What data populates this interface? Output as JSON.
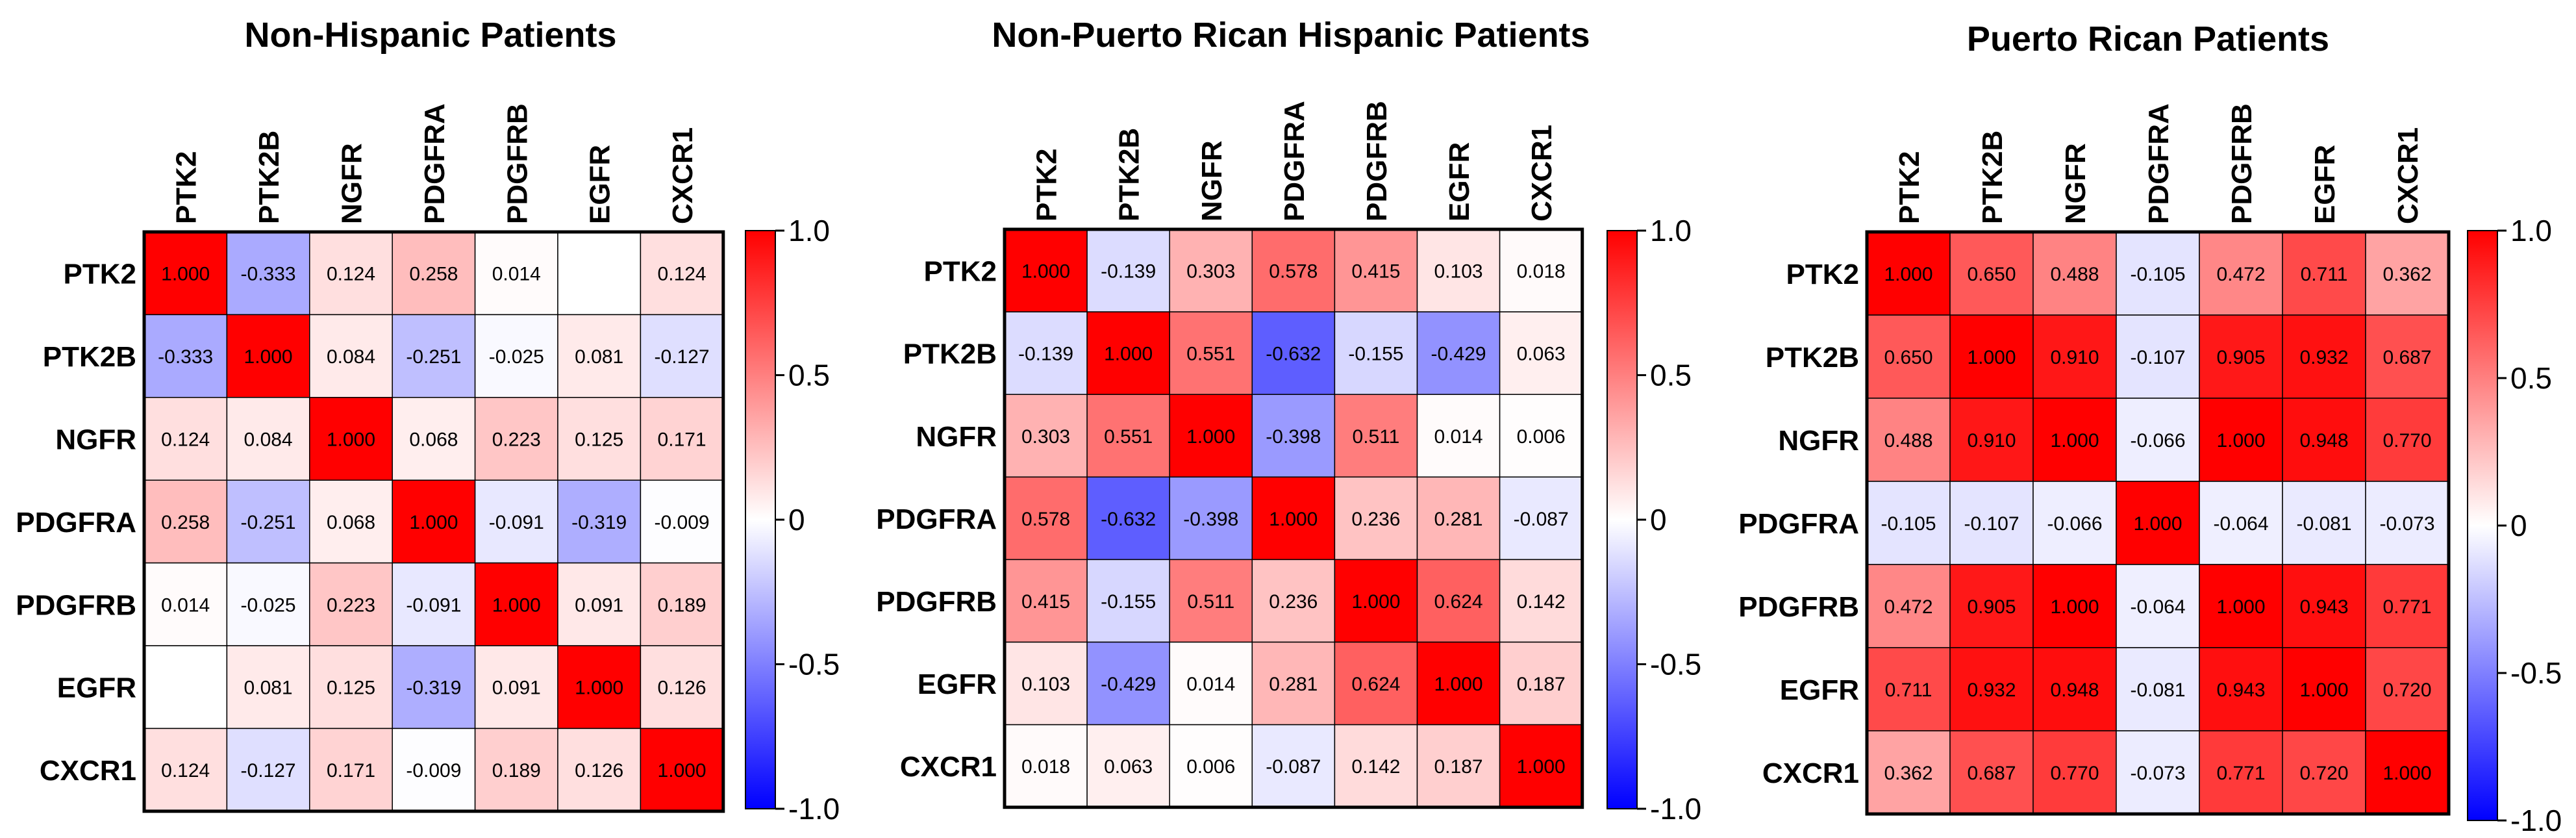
{
  "chart_data": [
    {
      "type": "heatmap",
      "title": "Non-Hispanic Patients",
      "genes": [
        "PTK2",
        "PTK2B",
        "NGFR",
        "PDGFRA",
        "PDGFRB",
        "EGFR",
        "CXCR1"
      ],
      "matrix": [
        [
          1.0,
          -0.333,
          0.124,
          0.258,
          0.014,
          null,
          0.124
        ],
        [
          -0.333,
          1.0,
          0.084,
          -0.251,
          -0.025,
          0.081,
          -0.127
        ],
        [
          0.124,
          0.084,
          1.0,
          0.068,
          0.223,
          0.125,
          0.171
        ],
        [
          0.258,
          -0.251,
          0.068,
          1.0,
          -0.091,
          -0.319,
          -0.009
        ],
        [
          0.014,
          -0.025,
          0.223,
          -0.091,
          1.0,
          0.091,
          0.189
        ],
        [
          null,
          0.081,
          0.125,
          -0.319,
          0.091,
          1.0,
          0.126
        ],
        [
          0.124,
          -0.127,
          0.171,
          -0.009,
          0.189,
          0.126,
          1.0
        ]
      ],
      "colorbar": {
        "ticks": [
          "1.0",
          "0.5",
          "0",
          "-0.5",
          "-1.0"
        ],
        "range": [
          -1,
          1
        ]
      }
    },
    {
      "type": "heatmap",
      "title": "Non-Puerto Rican Hispanic Patients",
      "genes": [
        "PTK2",
        "PTK2B",
        "NGFR",
        "PDGFRA",
        "PDGFRB",
        "EGFR",
        "CXCR1"
      ],
      "matrix": [
        [
          1.0,
          -0.139,
          0.303,
          0.578,
          0.415,
          0.103,
          0.018
        ],
        [
          -0.139,
          1.0,
          0.551,
          -0.632,
          -0.155,
          -0.429,
          0.063
        ],
        [
          0.303,
          0.551,
          1.0,
          -0.398,
          0.511,
          0.014,
          0.006
        ],
        [
          0.578,
          -0.632,
          -0.398,
          1.0,
          0.236,
          0.281,
          -0.087
        ],
        [
          0.415,
          -0.155,
          0.511,
          0.236,
          1.0,
          0.624,
          0.142
        ],
        [
          0.103,
          -0.429,
          0.014,
          0.281,
          0.624,
          1.0,
          0.187
        ],
        [
          0.018,
          0.063,
          0.006,
          -0.087,
          0.142,
          0.187,
          1.0
        ]
      ],
      "colorbar": {
        "ticks": [
          "1.0",
          "0.5",
          "0",
          "-0.5",
          "-1.0"
        ],
        "range": [
          -1,
          1
        ]
      }
    },
    {
      "type": "heatmap",
      "title": "Puerto Rican Patients",
      "genes": [
        "PTK2",
        "PTK2B",
        "NGFR",
        "PDGFRA",
        "PDGFRB",
        "EGFR",
        "CXCR1"
      ],
      "matrix": [
        [
          1.0,
          0.65,
          0.488,
          -0.105,
          0.472,
          0.711,
          0.362
        ],
        [
          0.65,
          1.0,
          0.91,
          -0.107,
          0.905,
          0.932,
          0.687
        ],
        [
          0.488,
          0.91,
          1.0,
          -0.066,
          1.0,
          0.948,
          0.77
        ],
        [
          -0.105,
          -0.107,
          -0.066,
          1.0,
          -0.064,
          -0.081,
          -0.073
        ],
        [
          0.472,
          0.905,
          1.0,
          -0.064,
          1.0,
          0.943,
          0.771
        ],
        [
          0.711,
          0.932,
          0.948,
          -0.081,
          0.943,
          1.0,
          0.72
        ],
        [
          0.362,
          0.687,
          0.77,
          -0.073,
          0.771,
          0.72,
          1.0
        ]
      ],
      "colorbar": {
        "ticks": [
          "1.0",
          "0.5",
          "0",
          "-0.5",
          "-1.0"
        ],
        "range": [
          -1,
          1
        ]
      }
    }
  ],
  "colors": {
    "positive": "#ff0000",
    "neutral": "#ffffff",
    "negative": "#0000ff"
  }
}
